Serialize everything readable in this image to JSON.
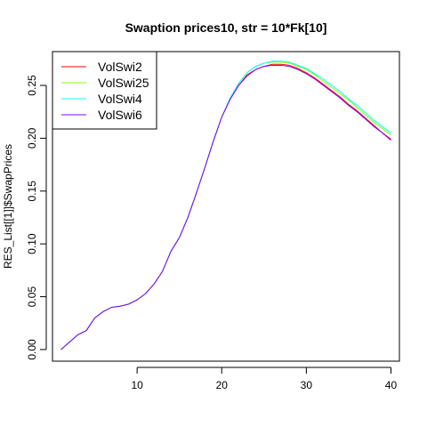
{
  "chart_data": {
    "type": "line",
    "title": "Swaption prices10, str = 10*Fk[10]",
    "xlabel": "",
    "ylabel": "RES_List[[1]]$SwapPrices",
    "xlim": [
      0,
      41
    ],
    "ylim": [
      -0.011,
      0.282
    ],
    "xticks": [
      10,
      20,
      30,
      40
    ],
    "yticks": [
      0.0,
      0.05,
      0.1,
      0.15,
      0.2,
      0.25
    ],
    "xtick_labels": [
      "10",
      "20",
      "30",
      "40"
    ],
    "ytick_labels": [
      "0.00",
      "0.05",
      "0.10",
      "0.15",
      "0.20",
      "0.25"
    ],
    "grid": false,
    "legend_position": "top-left",
    "x": [
      1,
      2,
      3,
      4,
      5,
      6,
      7,
      8,
      9,
      10,
      11,
      12,
      13,
      14,
      15,
      16,
      17,
      18,
      19,
      20,
      21,
      22,
      23,
      24,
      25,
      26,
      27,
      28,
      29,
      30,
      31,
      32,
      33,
      34,
      35,
      36,
      37,
      38,
      39,
      40
    ],
    "series": [
      {
        "name": "VolSwi2",
        "color": "#ff0000",
        "values": [
          0.0,
          0.007,
          0.014,
          0.018,
          0.03,
          0.036,
          0.04,
          0.041,
          0.043,
          0.047,
          0.053,
          0.062,
          0.074,
          0.093,
          0.106,
          0.125,
          0.148,
          0.172,
          0.197,
          0.22,
          0.237,
          0.25,
          0.26,
          0.265,
          0.268,
          0.27,
          0.27,
          0.269,
          0.266,
          0.262,
          0.257,
          0.251,
          0.245,
          0.239,
          0.232,
          0.226,
          0.219,
          0.212,
          0.205,
          0.199
        ]
      },
      {
        "name": "VolSwi25",
        "color": "#80ff00",
        "values": [
          0.0,
          0.007,
          0.014,
          0.018,
          0.03,
          0.036,
          0.04,
          0.041,
          0.043,
          0.047,
          0.053,
          0.062,
          0.074,
          0.093,
          0.106,
          0.125,
          0.148,
          0.172,
          0.197,
          0.22,
          0.238,
          0.252,
          0.262,
          0.268,
          0.271,
          0.272,
          0.272,
          0.271,
          0.268,
          0.265,
          0.26,
          0.254,
          0.248,
          0.242,
          0.236,
          0.229,
          0.222,
          0.215,
          0.209,
          0.203
        ]
      },
      {
        "name": "VolSwi4",
        "color": "#00ffff",
        "values": [
          0.0,
          0.007,
          0.014,
          0.018,
          0.03,
          0.036,
          0.04,
          0.041,
          0.043,
          0.047,
          0.053,
          0.062,
          0.074,
          0.093,
          0.106,
          0.125,
          0.148,
          0.172,
          0.197,
          0.22,
          0.238,
          0.252,
          0.262,
          0.268,
          0.271,
          0.273,
          0.273,
          0.272,
          0.269,
          0.266,
          0.261,
          0.256,
          0.25,
          0.244,
          0.237,
          0.231,
          0.224,
          0.217,
          0.211,
          0.205
        ]
      },
      {
        "name": "VolSwi6",
        "color": "#8000ff",
        "values": [
          0.0,
          0.007,
          0.014,
          0.018,
          0.03,
          0.036,
          0.04,
          0.041,
          0.043,
          0.047,
          0.053,
          0.062,
          0.074,
          0.093,
          0.106,
          0.125,
          0.148,
          0.172,
          0.197,
          0.22,
          0.237,
          0.25,
          0.259,
          0.265,
          0.268,
          0.269,
          0.269,
          0.268,
          0.265,
          0.261,
          0.256,
          0.25,
          0.244,
          0.238,
          0.231,
          0.225,
          0.218,
          0.211,
          0.205,
          0.198
        ]
      }
    ]
  }
}
